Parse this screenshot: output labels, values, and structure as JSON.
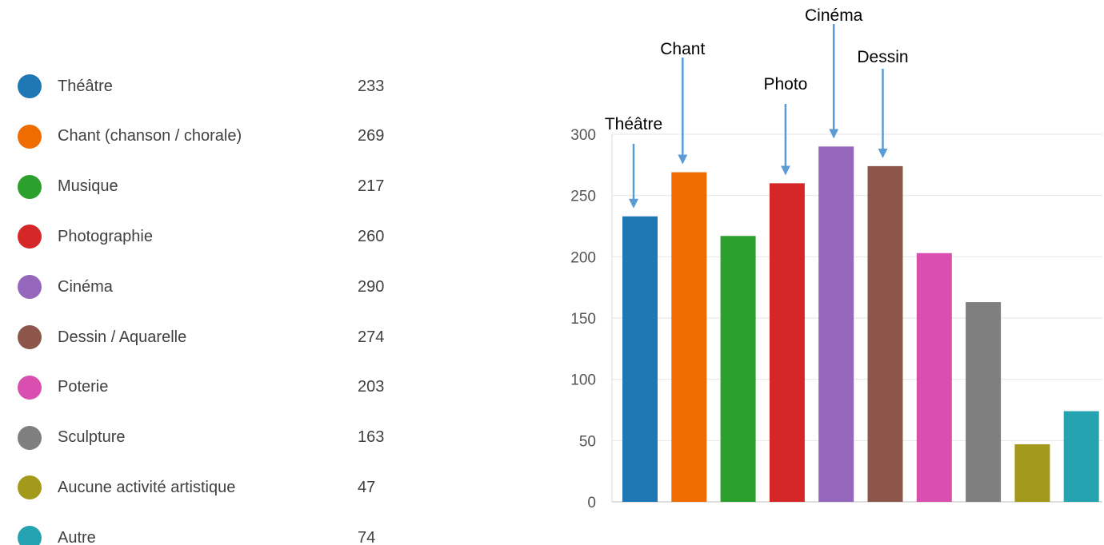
{
  "chart_data": {
    "type": "bar",
    "categories": [
      "Théâtre",
      "Chant (chanson / chorale)",
      "Musique",
      "Photographie",
      "Cinéma",
      "Dessin / Aquarelle",
      "Poterie",
      "Sculpture",
      "Aucune activité artistique",
      "Autre"
    ],
    "values": [
      233,
      269,
      217,
      260,
      290,
      274,
      203,
      163,
      47,
      74
    ],
    "colors": [
      "#1f77b4",
      "#ef6c00",
      "#2ca02c",
      "#d62728",
      "#9467bd",
      "#8c564b",
      "#d94fb0",
      "#7f7f7f",
      "#a39a1c",
      "#26a3b0"
    ],
    "title": "",
    "xlabel": "",
    "ylabel": "",
    "ylim": [
      0,
      300
    ],
    "yticks": [
      0,
      50,
      100,
      150,
      200,
      250,
      300
    ],
    "grid": true,
    "legend": "left",
    "annotations": [
      {
        "text": "Théâtre",
        "category_index": 0
      },
      {
        "text": "Chant",
        "category_index": 1
      },
      {
        "text": "Photo",
        "category_index": 3
      },
      {
        "text": "Cinéma",
        "category_index": 4
      },
      {
        "text": "Dessin",
        "category_index": 5
      }
    ],
    "annotation_arrow_color": "#5b9bd5"
  }
}
